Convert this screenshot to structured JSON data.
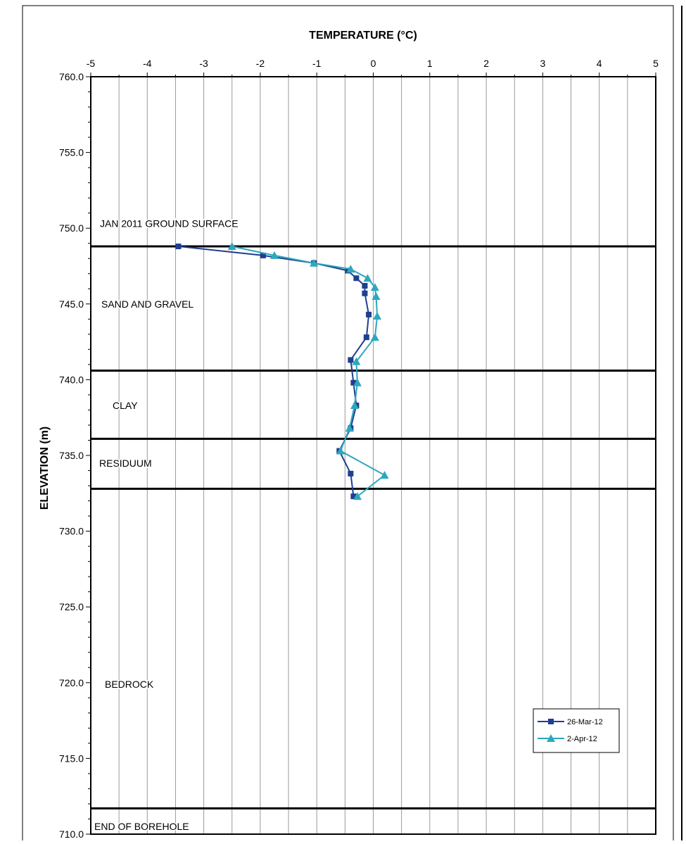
{
  "chart_data": {
    "type": "line",
    "title": "TEMPERATURE (°C)",
    "xlabel": "TEMPERATURE (°C)",
    "ylabel": "ELEVATION (m)",
    "xlim": [
      -5,
      5
    ],
    "ylim": [
      710,
      760
    ],
    "x_ticks": [
      "-5",
      "-4",
      "-3",
      "-2",
      "-1",
      "0",
      "1",
      "2",
      "3",
      "4",
      "5"
    ],
    "y_ticks": [
      "760.0",
      "755.0",
      "750.0",
      "745.0",
      "740.0",
      "735.0",
      "730.0",
      "725.0",
      "720.0",
      "715.0",
      "710.0"
    ],
    "grid": true,
    "legend_position": "bottom-right",
    "boundaries": [
      {
        "elevation": 748.8,
        "label": "JAN 2011 GROUND SURFACE",
        "label_elevation": 750.3
      },
      {
        "elevation": 740.6,
        "label": "SAND AND GRAVEL",
        "label_elevation": 745.0
      },
      {
        "elevation": 736.1,
        "label": "CLAY",
        "label_elevation": 738.3
      },
      {
        "elevation": 732.8,
        "label": "RESIDUUM",
        "label_elevation": 734.5
      },
      {
        "elevation": 711.7,
        "label": "BEDROCK",
        "label_elevation": 719.9
      }
    ],
    "bottom_label": {
      "text": "END OF BOREHOLE",
      "label_elevation": 710.5
    },
    "series": [
      {
        "name": "26-Mar-12",
        "color": "#1f3f8f",
        "marker": "square",
        "points": [
          {
            "x": -3.45,
            "y": 748.8
          },
          {
            "x": -1.95,
            "y": 748.2
          },
          {
            "x": -1.05,
            "y": 747.7
          },
          {
            "x": -0.45,
            "y": 747.2
          },
          {
            "x": -0.3,
            "y": 746.7
          },
          {
            "x": -0.15,
            "y": 746.2
          },
          {
            "x": -0.15,
            "y": 745.7
          },
          {
            "x": -0.08,
            "y": 744.3
          },
          {
            "x": -0.12,
            "y": 742.8
          },
          {
            "x": -0.4,
            "y": 741.3
          },
          {
            "x": -0.35,
            "y": 739.8
          },
          {
            "x": -0.3,
            "y": 738.3
          },
          {
            "x": -0.4,
            "y": 736.8
          },
          {
            "x": -0.6,
            "y": 735.3
          },
          {
            "x": -0.4,
            "y": 733.8
          },
          {
            "x": -0.35,
            "y": 732.3
          }
        ]
      },
      {
        "name": "2-Apr-12",
        "color": "#2ea7bd",
        "marker": "triangle",
        "points": [
          {
            "x": -2.5,
            "y": 748.8
          },
          {
            "x": -1.75,
            "y": 748.2
          },
          {
            "x": -1.05,
            "y": 747.7
          },
          {
            "x": -0.4,
            "y": 747.3
          },
          {
            "x": -0.1,
            "y": 746.7
          },
          {
            "x": 0.03,
            "y": 746.1
          },
          {
            "x": 0.05,
            "y": 745.5
          },
          {
            "x": 0.07,
            "y": 744.2
          },
          {
            "x": 0.03,
            "y": 742.8
          },
          {
            "x": -0.3,
            "y": 741.2
          },
          {
            "x": -0.28,
            "y": 739.8
          },
          {
            "x": -0.33,
            "y": 738.3
          },
          {
            "x": -0.42,
            "y": 736.8
          },
          {
            "x": -0.58,
            "y": 735.3
          },
          {
            "x": 0.2,
            "y": 733.7
          },
          {
            "x": -0.28,
            "y": 732.3
          }
        ]
      }
    ]
  }
}
